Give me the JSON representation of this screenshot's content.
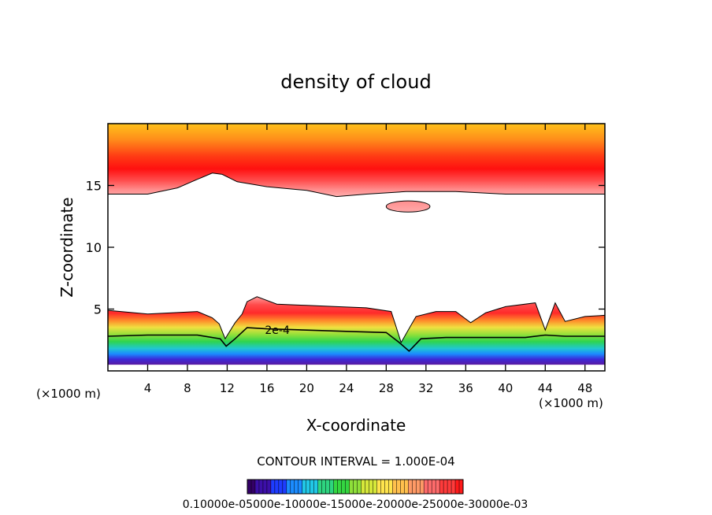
{
  "chart_data": {
    "type": "heatmap",
    "title": "density of cloud",
    "xlabel": "X-coordinate",
    "ylabel": "Z-coordinate",
    "x_unit_left": "(×1000 m)",
    "x_unit_right": "(×1000 m)",
    "xlim": [
      0,
      50
    ],
    "ylim": [
      0,
      20
    ],
    "x_ticks": [
      4,
      8,
      12,
      16,
      20,
      24,
      28,
      32,
      36,
      40,
      44,
      48
    ],
    "y_ticks": [
      5,
      10,
      15
    ],
    "contour_label": "2e-4",
    "contour_interval_text": "CONTOUR INTERVAL = 1.000E-04",
    "colorbar_labels_text": "0.10000e-05000e-10000e-15000e-20000e-25000e-30000e-03",
    "colorbar_range": [
      1e-06,
      0.0003
    ],
    "colormap": [
      "#330066",
      "#3c0fa8",
      "#1e3cff",
      "#1b8cff",
      "#21c8e6",
      "#2ed480",
      "#34d641",
      "#8fe03a",
      "#d6e83a",
      "#ffe44d",
      "#ffc04d",
      "#ff9a66",
      "#ff6b6b",
      "#ff3b3b",
      "#ff1a1a"
    ],
    "upper_layer": {
      "z_bottom": [
        [
          0,
          14.3
        ],
        [
          4,
          14.3
        ],
        [
          7,
          14.8
        ],
        [
          9,
          15.5
        ],
        [
          10.5,
          16
        ],
        [
          11.5,
          15.9
        ],
        [
          13,
          15.3
        ],
        [
          16,
          14.9
        ],
        [
          20,
          14.6
        ],
        [
          23,
          14.1
        ],
        [
          26,
          14.3
        ],
        [
          30,
          14.5
        ],
        [
          35,
          14.5
        ],
        [
          40,
          14.3
        ],
        [
          44,
          14.3
        ],
        [
          50,
          14.3
        ]
      ],
      "z_top": 20,
      "ridge_max_x": 9.5
    },
    "small_cloud": {
      "x_center": 30.2,
      "z_center": 13.3,
      "x_halfwidth": 2.2,
      "z_halfheight": 0.45
    },
    "lower_layer": {
      "z_top": [
        [
          0,
          4.9
        ],
        [
          4,
          4.6
        ],
        [
          9,
          4.8
        ],
        [
          10.5,
          4.3
        ],
        [
          11.2,
          3.8
        ],
        [
          11.8,
          2.6
        ],
        [
          12.8,
          3.9
        ],
        [
          13.5,
          4.6
        ],
        [
          14,
          5.6
        ],
        [
          15,
          6
        ],
        [
          17,
          5.4
        ],
        [
          20,
          5.3
        ],
        [
          23,
          5.2
        ],
        [
          26,
          5.1
        ],
        [
          28.5,
          4.8
        ],
        [
          29.5,
          2.3
        ],
        [
          31,
          4.4
        ],
        [
          33,
          4.8
        ],
        [
          35,
          4.8
        ],
        [
          36.5,
          3.9
        ],
        [
          38,
          4.7
        ],
        [
          40,
          5.2
        ],
        [
          43,
          5.5
        ],
        [
          44,
          3.3
        ],
        [
          45,
          5.5
        ],
        [
          46,
          4
        ],
        [
          48,
          4.4
        ],
        [
          50,
          4.5
        ]
      ],
      "contour_2e4": [
        [
          0,
          2.8
        ],
        [
          4,
          2.9
        ],
        [
          9,
          2.9
        ],
        [
          11.3,
          2.6
        ],
        [
          11.9,
          2.0
        ],
        [
          12.8,
          2.6
        ],
        [
          14,
          3.5
        ],
        [
          16,
          3.4
        ],
        [
          20,
          3.3
        ],
        [
          24,
          3.2
        ],
        [
          28,
          3.1
        ],
        [
          29.3,
          2.3
        ],
        [
          30.3,
          1.6
        ],
        [
          31.5,
          2.6
        ],
        [
          34,
          2.7
        ],
        [
          38,
          2.7
        ],
        [
          42,
          2.7
        ],
        [
          44,
          2.9
        ],
        [
          46,
          2.8
        ],
        [
          50,
          2.8
        ]
      ],
      "z_bottom": 0.5
    }
  }
}
